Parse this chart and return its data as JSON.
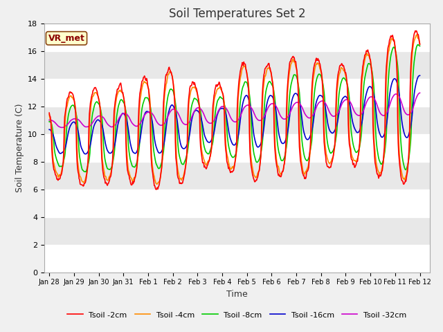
{
  "title": "Soil Temperatures Set 2",
  "xlabel": "Time",
  "ylabel": "Soil Temperature (C)",
  "ylim": [
    0,
    18
  ],
  "annotation_text": "VR_met",
  "legend_labels": [
    "Tsoil -2cm",
    "Tsoil -4cm",
    "Tsoil -8cm",
    "Tsoil -16cm",
    "Tsoil -32cm"
  ],
  "line_colors": [
    "#ff0000",
    "#ff8c00",
    "#00cc00",
    "#0000cc",
    "#cc00cc"
  ],
  "xtick_labels": [
    "Jan 28",
    "Jan 29",
    "Jan 30",
    "Jan 31",
    "Feb 1",
    "Feb 2",
    "Feb 3",
    "Feb 4",
    "Feb 5",
    "Feb 6",
    "Feb 7",
    "Feb 8",
    "Feb 9",
    "Feb 10",
    "Feb 11",
    "Feb 12"
  ],
  "ytick_values": [
    0,
    2,
    4,
    6,
    8,
    10,
    12,
    14,
    16,
    18
  ],
  "title_fontsize": 12,
  "axis_label_fontsize": 9,
  "tick_fontsize": 8,
  "bg_outer": "#f0f0f0",
  "band_light": "#e8e8e8",
  "band_dark": "#d8d8d8"
}
